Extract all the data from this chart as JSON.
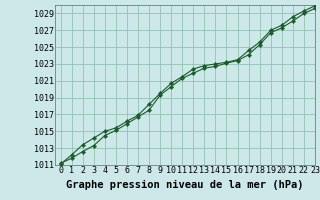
{
  "title": "Graphe pression niveau de la mer (hPa)",
  "background_color": "#cce8e8",
  "plot_background_color": "#cce8e8",
  "grid_color": "#88bbaa",
  "line_color": "#1a5c2a",
  "marker_color": "#1a5c2a",
  "xlim": [
    -0.5,
    23
  ],
  "ylim": [
    1011,
    1030
  ],
  "xticks": [
    0,
    1,
    2,
    3,
    4,
    5,
    6,
    7,
    8,
    9,
    10,
    11,
    12,
    13,
    14,
    15,
    16,
    17,
    18,
    19,
    20,
    21,
    22,
    23
  ],
  "yticks": [
    1011,
    1013,
    1015,
    1017,
    1019,
    1021,
    1023,
    1025,
    1027,
    1029
  ],
  "series1_x": [
    0,
    1,
    2,
    3,
    4,
    5,
    6,
    7,
    8,
    9,
    10,
    11,
    12,
    13,
    14,
    15,
    16,
    17,
    18,
    19,
    20,
    21,
    22,
    23
  ],
  "series1_y": [
    1011.2,
    1011.8,
    1012.6,
    1013.3,
    1014.5,
    1015.1,
    1015.9,
    1016.7,
    1017.5,
    1019.3,
    1020.3,
    1021.3,
    1021.9,
    1022.5,
    1022.7,
    1023.1,
    1023.4,
    1024.1,
    1025.3,
    1026.7,
    1027.3,
    1028.1,
    1029.0,
    1029.6
  ],
  "series2_x": [
    0,
    1,
    2,
    3,
    4,
    5,
    6,
    7,
    8,
    9,
    10,
    11,
    12,
    13,
    14,
    15,
    16,
    17,
    18,
    19,
    20,
    21,
    22,
    23
  ],
  "series2_y": [
    1011.1,
    1012.2,
    1013.4,
    1014.2,
    1015.0,
    1015.4,
    1016.2,
    1016.9,
    1018.2,
    1019.5,
    1020.7,
    1021.5,
    1022.4,
    1022.8,
    1023.0,
    1023.2,
    1023.5,
    1024.6,
    1025.6,
    1027.0,
    1027.6,
    1028.6,
    1029.3,
    1029.9
  ],
  "title_fontsize": 7.5,
  "tick_fontsize": 6.0,
  "marker_style": "D",
  "marker_size": 2.2,
  "line_width": 0.8
}
